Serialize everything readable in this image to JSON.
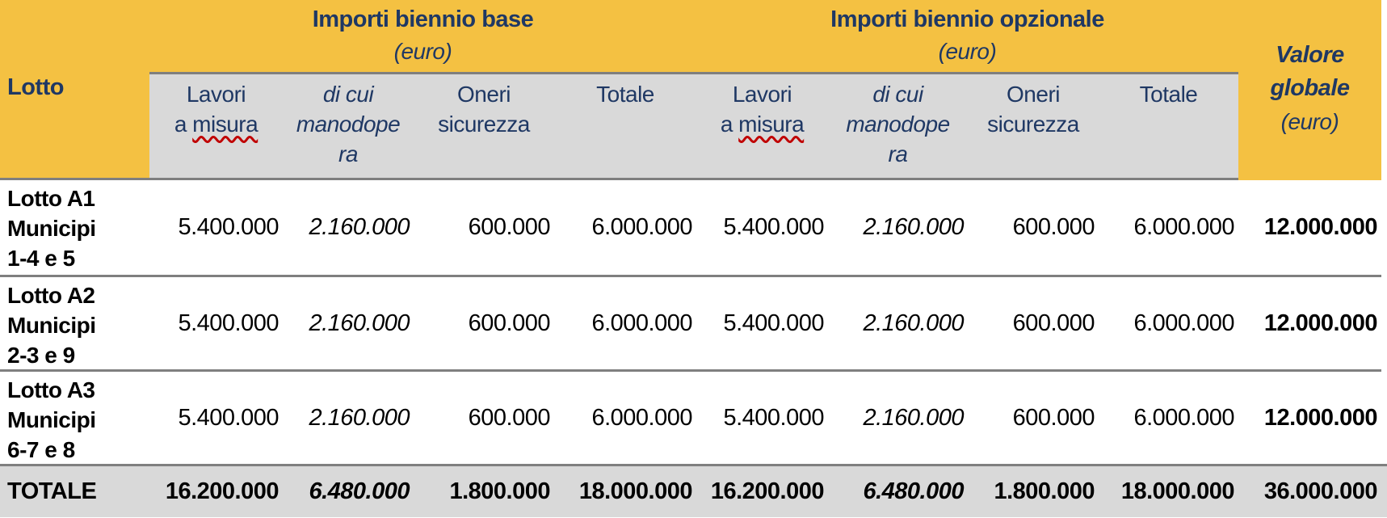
{
  "colors": {
    "header_yellow": "#F4C142",
    "header_text_navy": "#1F3864",
    "band_gray": "#D9D9D9",
    "border_gray": "#7F7F7F",
    "spellcheck_red": "#C00000"
  },
  "table": {
    "corner_header": "Lotto",
    "groups": [
      {
        "title": "Importi biennio base",
        "unit": "(euro)",
        "columns": [
          {
            "key": "lavori",
            "lines": [
              "Lavori",
              "a misura"
            ],
            "spell_error": "misura",
            "italic": false
          },
          {
            "key": "manodopera",
            "lines": [
              "di cui",
              "manodope",
              "ra"
            ],
            "italic": true
          },
          {
            "key": "oneri",
            "lines": [
              "Oneri",
              "sicurezza"
            ],
            "italic": false
          },
          {
            "key": "totale",
            "lines": [
              "Totale"
            ],
            "italic": false
          }
        ]
      },
      {
        "title": "Importi biennio opzionale",
        "unit": "(euro)",
        "columns": [
          {
            "key": "lavori",
            "lines": [
              "Lavori",
              "a misura"
            ],
            "spell_error": "misura",
            "italic": false
          },
          {
            "key": "manodopera",
            "lines": [
              "di cui",
              "manodope",
              "ra"
            ],
            "italic": true
          },
          {
            "key": "oneri",
            "lines": [
              "Oneri",
              "sicurezza"
            ],
            "italic": false
          },
          {
            "key": "totale",
            "lines": [
              "Totale"
            ],
            "italic": false
          }
        ]
      }
    ],
    "value_header": {
      "line1": "Valore",
      "line2": "globale",
      "unit": "(euro)"
    },
    "rows": [
      {
        "label_lines": [
          "Lotto A1",
          "Municipi",
          "1-4 e 5"
        ],
        "base": {
          "lavori": "5.400.000",
          "manodopera": "2.160.000",
          "oneri": "600.000",
          "totale": "6.000.000"
        },
        "opzionale": {
          "lavori": "5.400.000",
          "manodopera": "2.160.000",
          "oneri": "600.000",
          "totale": "6.000.000"
        },
        "valore_globale": "12.000.000"
      },
      {
        "label_lines": [
          "Lotto A2",
          "Municipi",
          "2-3 e 9"
        ],
        "base": {
          "lavori": "5.400.000",
          "manodopera": "2.160.000",
          "oneri": "600.000",
          "totale": "6.000.000"
        },
        "opzionale": {
          "lavori": "5.400.000",
          "manodopera": "2.160.000",
          "oneri": "600.000",
          "totale": "6.000.000"
        },
        "valore_globale": "12.000.000"
      },
      {
        "label_lines": [
          "Lotto A3",
          "Municipi",
          "6-7 e 8"
        ],
        "base": {
          "lavori": "5.400.000",
          "manodopera": "2.160.000",
          "oneri": "600.000",
          "totale": "6.000.000"
        },
        "opzionale": {
          "lavori": "5.400.000",
          "manodopera": "2.160.000",
          "oneri": "600.000",
          "totale": "6.000.000"
        },
        "valore_globale": "12.000.000"
      }
    ],
    "total_row": {
      "label": "TOTALE",
      "base": {
        "lavori": "16.200.000",
        "manodopera": "6.480.000",
        "oneri": "1.800.000",
        "totale": "18.000.000"
      },
      "opzionale": {
        "lavori": "16.200.000",
        "manodopera": "6.480.000",
        "oneri": "1.800.000",
        "totale": "18.000.000"
      },
      "valore_globale": "36.000.000"
    }
  }
}
